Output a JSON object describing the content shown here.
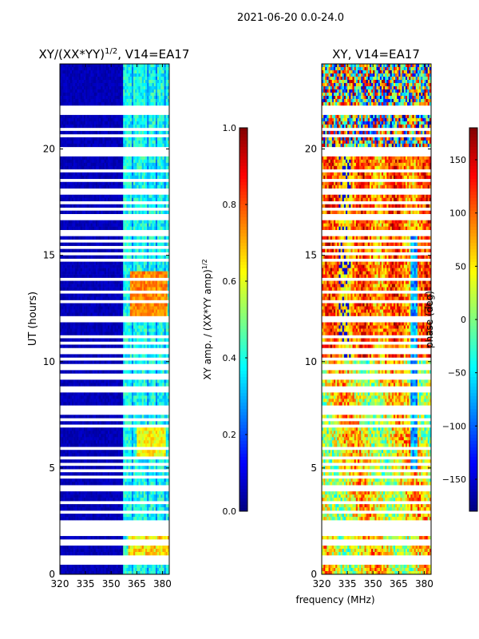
{
  "suptitle": "2021-06-20 0.0-24.0",
  "chart_data": [
    {
      "type": "heatmap",
      "title": "XY/(XX*YY)^1/2, V14=EA17",
      "title_main": "XY/(XX*YY)",
      "title_exp": "1/2",
      "title_tail": ", V14=EA17",
      "ylabel": "UT (hours)",
      "xlabel": "",
      "xlim": [
        320,
        384
      ],
      "ylim": [
        0,
        24
      ],
      "xticks": [
        320,
        335,
        350,
        365,
        380
      ],
      "yticks": [
        0,
        5,
        10,
        15,
        20
      ],
      "colorbar": {
        "label": "XY amp. / (XX*YY amp)^1/2",
        "label_main": "XY amp. / (XX*YY amp)",
        "label_exp": "1/2",
        "range": [
          0.0,
          1.0
        ],
        "ticks": [
          0.0,
          0.2,
          0.4,
          0.6,
          0.8,
          1.0
        ],
        "tick_labels": [
          "0.0",
          "0.2",
          "0.4",
          "0.6",
          "0.8",
          "1.0"
        ],
        "colormap": "jet"
      },
      "description_values": "low (~0.05) for 320-360 MHz; ~0.3-0.5 across 360-384 MHz with peaks ~0.7-0.8 near 12-14 UT"
    },
    {
      "type": "heatmap",
      "title": "XY, V14=EA17",
      "ylabel": "",
      "xlabel": "frequency (MHz)",
      "xlim": [
        320,
        384
      ],
      "ylim": [
        0,
        24
      ],
      "xticks": [
        320,
        335,
        350,
        365,
        380
      ],
      "yticks": [
        0,
        5,
        10,
        15,
        20
      ],
      "colorbar": {
        "label": "phase (deg)",
        "range": [
          -180,
          180
        ],
        "ticks": [
          -150,
          -100,
          -50,
          0,
          50,
          100,
          150
        ],
        "tick_labels": [
          "−150",
          "−100",
          "−50",
          "0",
          "50",
          "100",
          "150"
        ],
        "colormap": "jet"
      },
      "description_values": "phase mostly 60-150 deg from 10-20 UT; mixed -150..150 near 20-24 UT; 0-80 deg band 0-7 UT"
    }
  ],
  "flagged_ut_hours": [
    0.55,
    0.75,
    1.4,
    1.55,
    1.85,
    2.05,
    2.25,
    2.45,
    2.95,
    3.35,
    3.6,
    3.95,
    4.15,
    4.55,
    4.85,
    5.15,
    5.55,
    5.9,
    6.15,
    6.6,
    7.05,
    7.25,
    7.6,
    7.75,
    7.9,
    8.55,
    8.85,
    9.15,
    9.45,
    9.75,
    10.05,
    10.5,
    10.85,
    11.15,
    12.0,
    12.85,
    13.25,
    13.85,
    14.75,
    15.05,
    15.45,
    15.7,
    15.95,
    16.15,
    16.8,
    17.1,
    17.45,
    17.85,
    18.0,
    18.15,
    18.5,
    18.95,
    19.7,
    19.85,
    20.0,
    20.65,
    20.95,
    21.6,
    21.85,
    22.0
  ]
}
